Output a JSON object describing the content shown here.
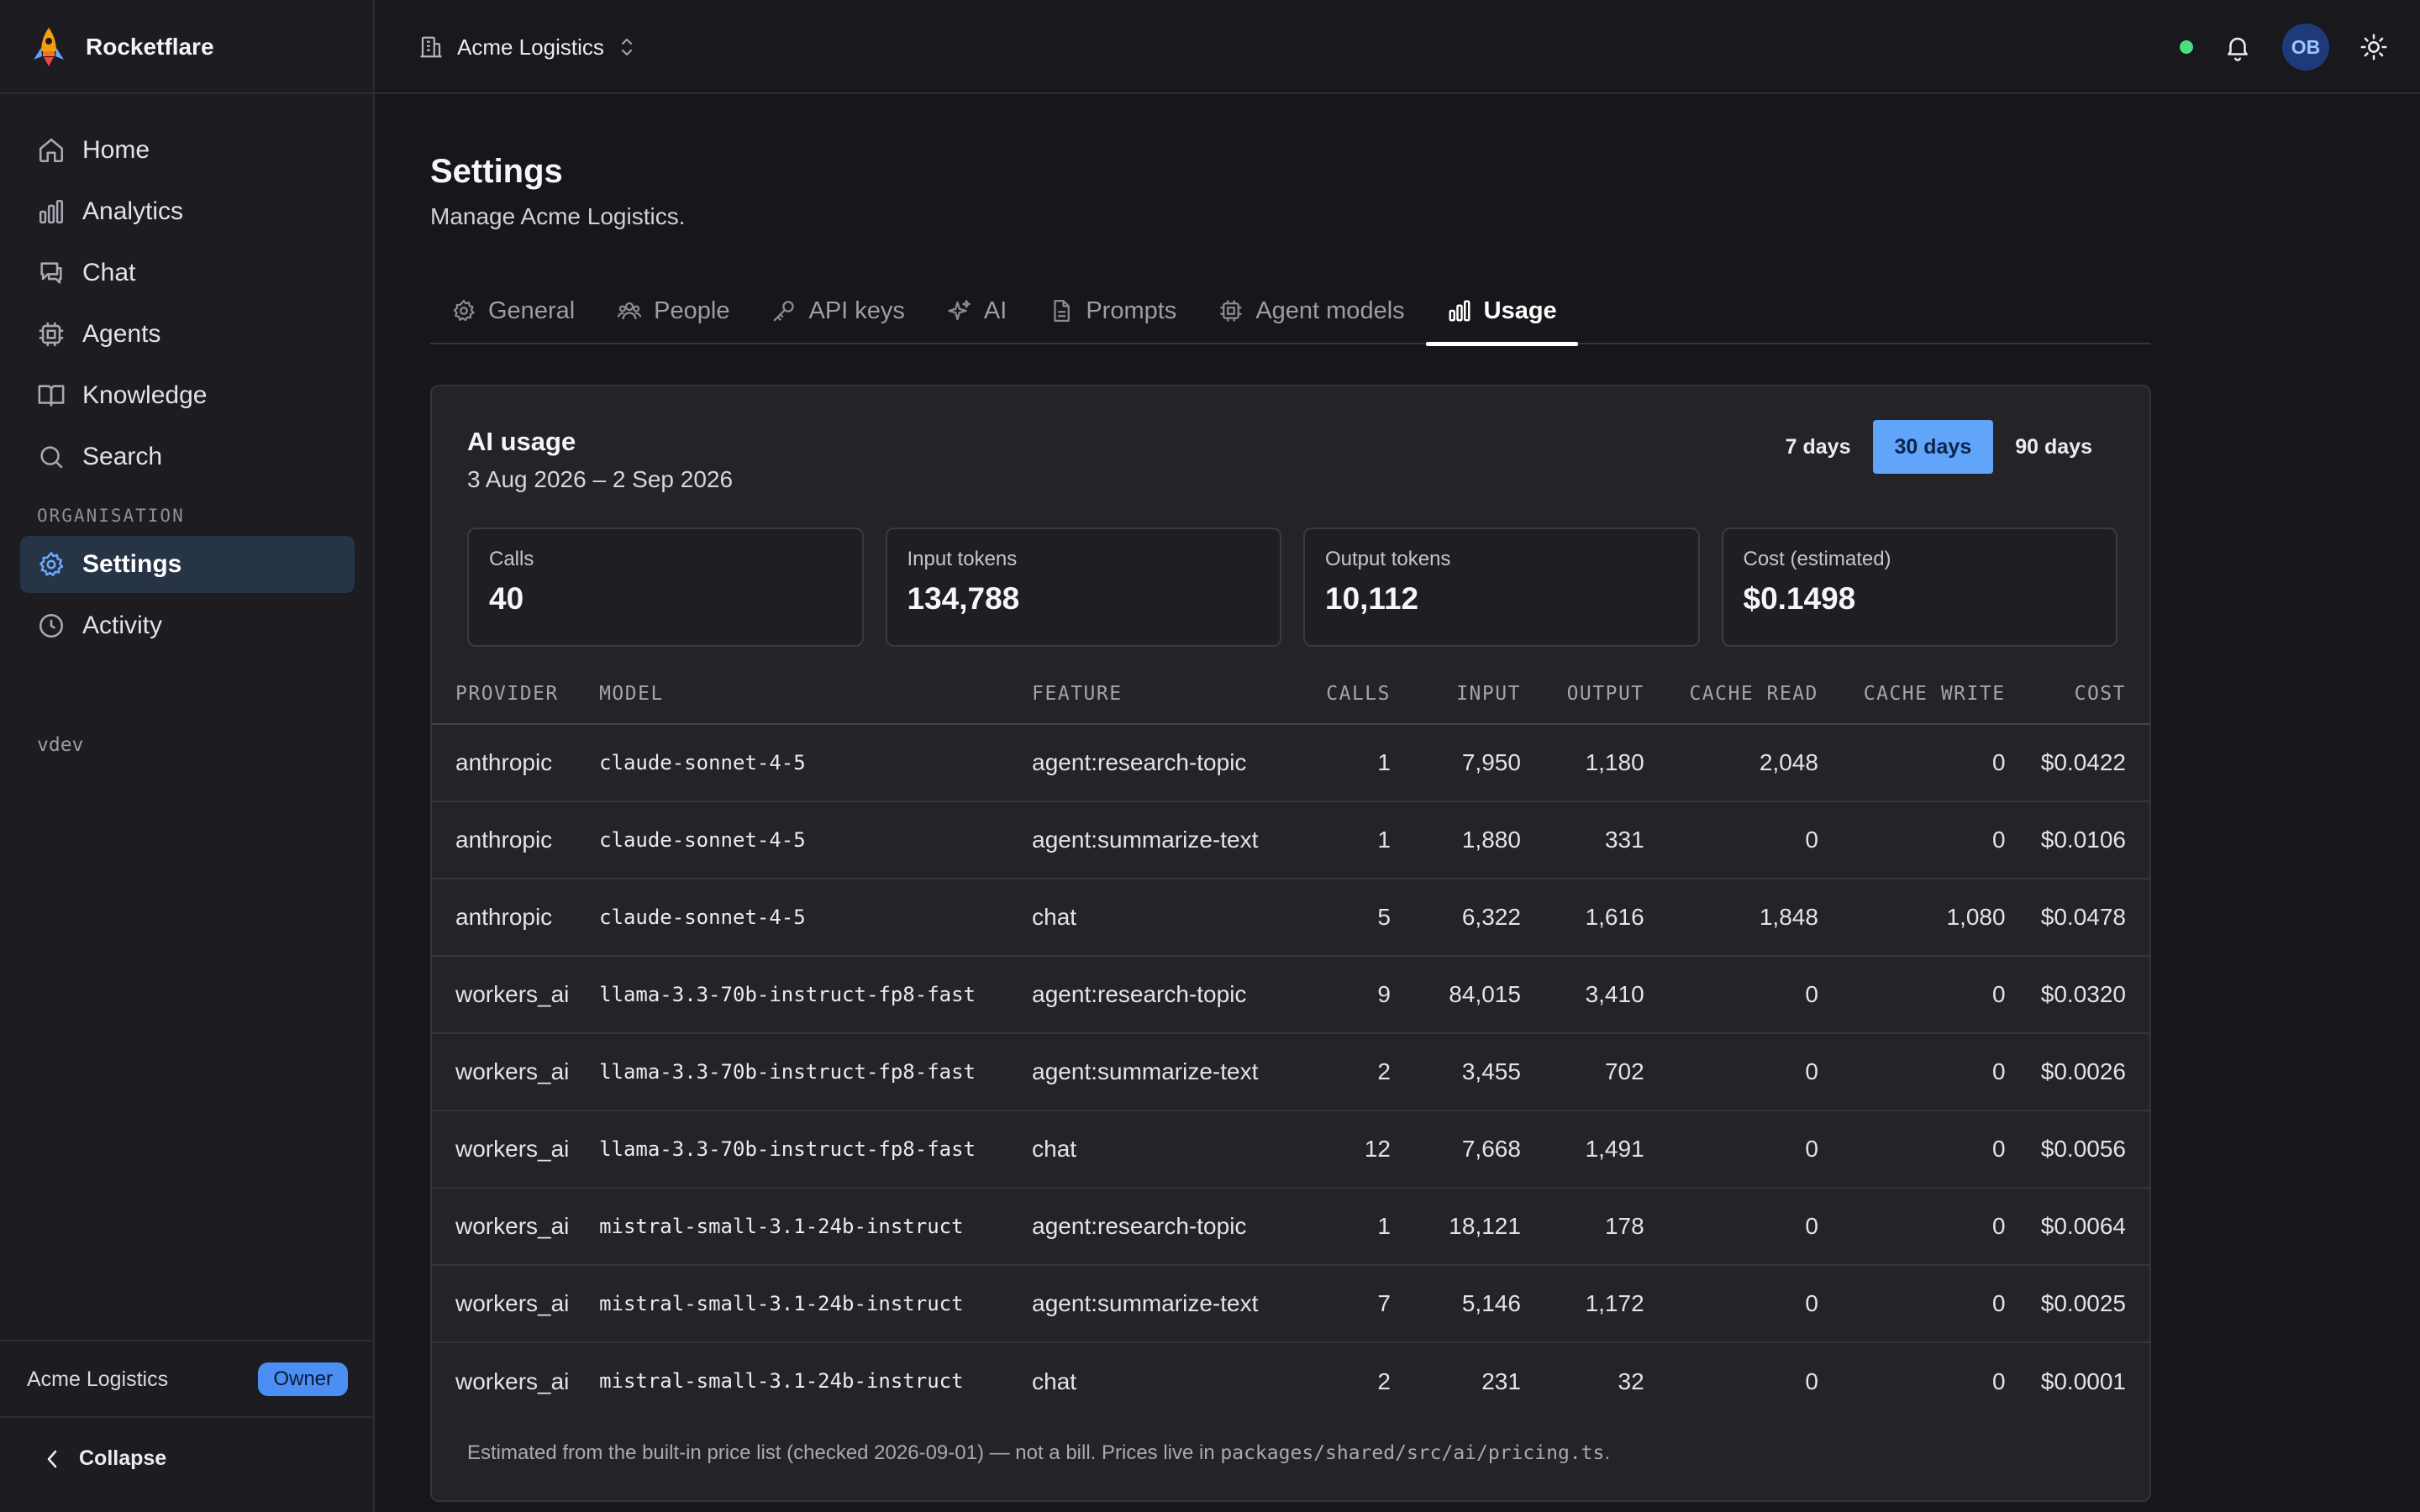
{
  "app": {
    "name": "Rocketflare"
  },
  "sidebar": {
    "nav": [
      {
        "label": "Home",
        "icon": "home-icon"
      },
      {
        "label": "Analytics",
        "icon": "bar-chart-icon"
      },
      {
        "label": "Chat",
        "icon": "chat-icon"
      },
      {
        "label": "Agents",
        "icon": "cpu-icon"
      },
      {
        "label": "Knowledge",
        "icon": "book-icon"
      },
      {
        "label": "Search",
        "icon": "search-icon"
      }
    ],
    "section_label": "ORGANISATION",
    "org_nav": [
      {
        "label": "Settings",
        "icon": "gear-icon",
        "active": true
      },
      {
        "label": "Activity",
        "icon": "clock-icon"
      }
    ],
    "env_label": "vdev",
    "org_name": "Acme Logistics",
    "role_badge": "Owner",
    "collapse_label": "Collapse"
  },
  "topbar": {
    "org_switcher": "Acme Logistics",
    "avatar_initials": "OB",
    "status_color": "#4ade80"
  },
  "page": {
    "title": "Settings",
    "subtitle": "Manage Acme Logistics.",
    "tabs": [
      {
        "label": "General",
        "icon": "gear-icon"
      },
      {
        "label": "People",
        "icon": "people-icon"
      },
      {
        "label": "API keys",
        "icon": "key-icon"
      },
      {
        "label": "AI",
        "icon": "sparkles-icon"
      },
      {
        "label": "Prompts",
        "icon": "document-icon"
      },
      {
        "label": "Agent models",
        "icon": "cpu-icon"
      },
      {
        "label": "Usage",
        "icon": "bar-chart-icon",
        "active": true
      }
    ]
  },
  "usage": {
    "title": "AI usage",
    "date_range": "3 Aug 2026 – 2 Sep 2026",
    "ranges": [
      "7 days",
      "30 days",
      "90 days"
    ],
    "active_range": "30 days",
    "accent": "#60a5fa",
    "stats": [
      {
        "label": "Calls",
        "value": "40"
      },
      {
        "label": "Input tokens",
        "value": "134,788"
      },
      {
        "label": "Output tokens",
        "value": "10,112"
      },
      {
        "label": "Cost (estimated)",
        "value": "$0.1498"
      }
    ],
    "columns": [
      "PROVIDER",
      "MODEL",
      "FEATURE",
      "CALLS",
      "INPUT",
      "OUTPUT",
      "CACHE READ",
      "CACHE WRITE",
      "COST"
    ],
    "rows": [
      {
        "provider": "anthropic",
        "model": "claude-sonnet-4-5",
        "feature": "agent:research-topic",
        "calls": "1",
        "input": "7,950",
        "output": "1,180",
        "cache_read": "2,048",
        "cache_write": "0",
        "cost": "$0.0422"
      },
      {
        "provider": "anthropic",
        "model": "claude-sonnet-4-5",
        "feature": "agent:summarize-text",
        "calls": "1",
        "input": "1,880",
        "output": "331",
        "cache_read": "0",
        "cache_write": "0",
        "cost": "$0.0106"
      },
      {
        "provider": "anthropic",
        "model": "claude-sonnet-4-5",
        "feature": "chat",
        "calls": "5",
        "input": "6,322",
        "output": "1,616",
        "cache_read": "1,848",
        "cache_write": "1,080",
        "cost": "$0.0478"
      },
      {
        "provider": "workers_ai",
        "model": "llama-3.3-70b-instruct-fp8-fast",
        "feature": "agent:research-topic",
        "calls": "9",
        "input": "84,015",
        "output": "3,410",
        "cache_read": "0",
        "cache_write": "0",
        "cost": "$0.0320"
      },
      {
        "provider": "workers_ai",
        "model": "llama-3.3-70b-instruct-fp8-fast",
        "feature": "agent:summarize-text",
        "calls": "2",
        "input": "3,455",
        "output": "702",
        "cache_read": "0",
        "cache_write": "0",
        "cost": "$0.0026"
      },
      {
        "provider": "workers_ai",
        "model": "llama-3.3-70b-instruct-fp8-fast",
        "feature": "chat",
        "calls": "12",
        "input": "7,668",
        "output": "1,491",
        "cache_read": "0",
        "cache_write": "0",
        "cost": "$0.0056"
      },
      {
        "provider": "workers_ai",
        "model": "mistral-small-3.1-24b-instruct",
        "feature": "agent:research-topic",
        "calls": "1",
        "input": "18,121",
        "output": "178",
        "cache_read": "0",
        "cache_write": "0",
        "cost": "$0.0064"
      },
      {
        "provider": "workers_ai",
        "model": "mistral-small-3.1-24b-instruct",
        "feature": "agent:summarize-text",
        "calls": "7",
        "input": "5,146",
        "output": "1,172",
        "cache_read": "0",
        "cache_write": "0",
        "cost": "$0.0025"
      },
      {
        "provider": "workers_ai",
        "model": "mistral-small-3.1-24b-instruct",
        "feature": "chat",
        "calls": "2",
        "input": "231",
        "output": "32",
        "cache_read": "0",
        "cache_write": "0",
        "cost": "$0.0001"
      }
    ],
    "footnote_text": "Estimated from the built-in price list (checked 2026-09-01) — not a bill. Prices live in ",
    "footnote_path": "packages/shared/src/ai/pricing.ts",
    "footnote_end": "."
  }
}
